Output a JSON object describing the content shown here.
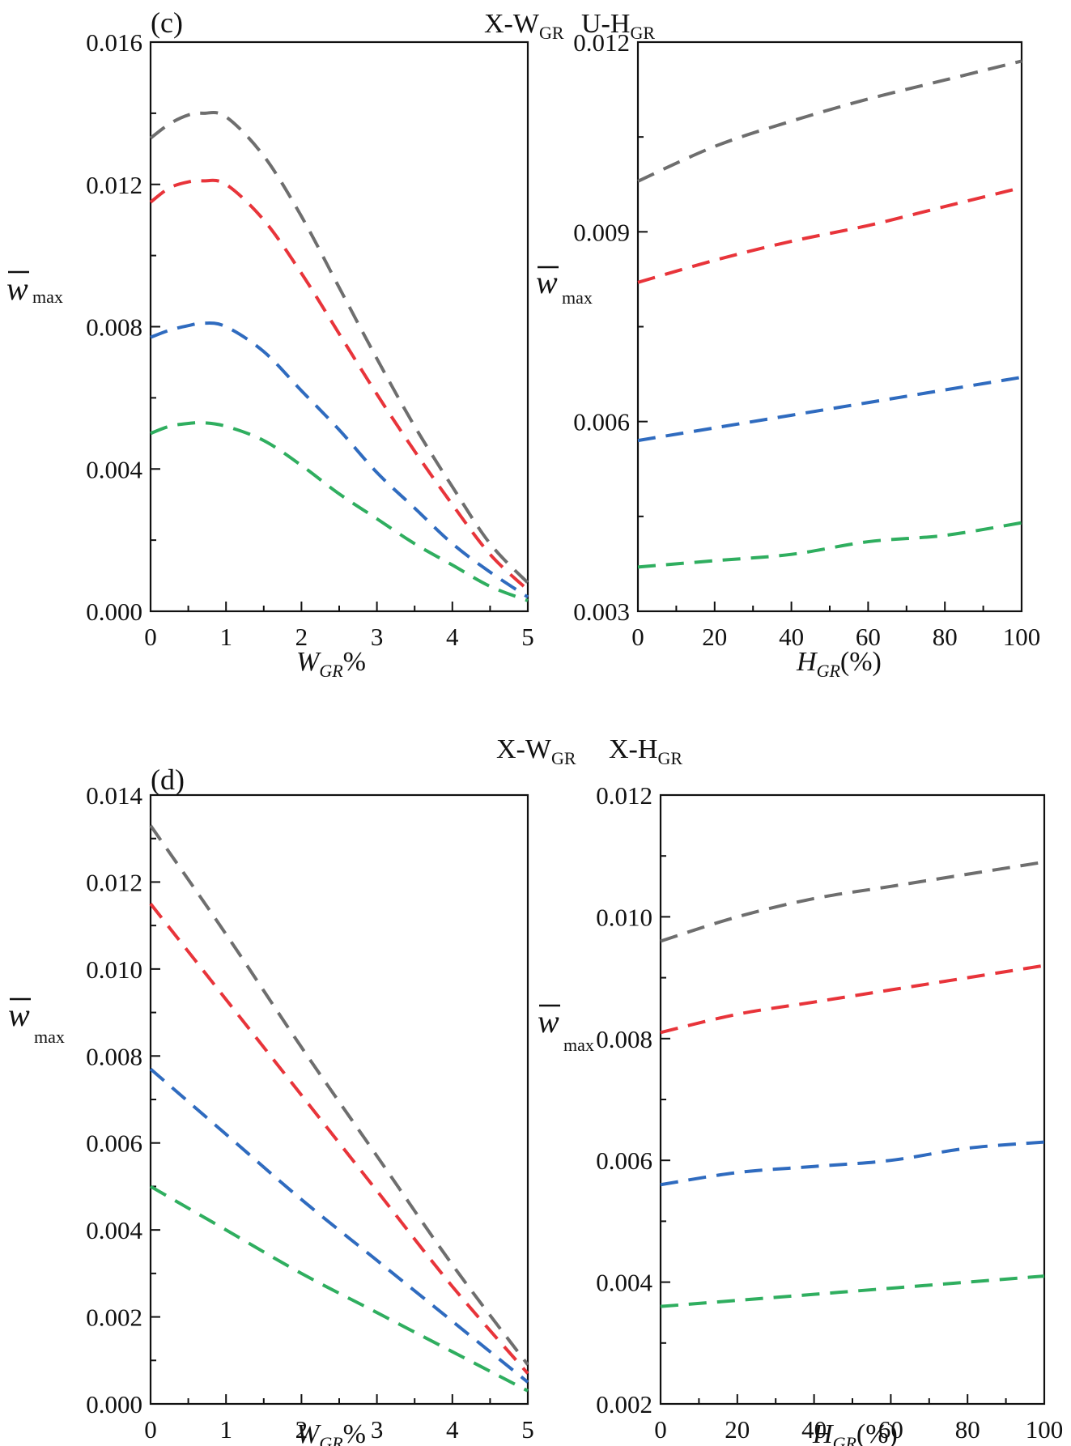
{
  "figure": {
    "panel_c": {
      "label": "(c)",
      "header": {
        "a_main": "X-W",
        "a_sub": "GR",
        "b_main": "U-H",
        "b_sub": "GR"
      }
    },
    "panel_d": {
      "label": "(d)",
      "header": {
        "a_main": "X-W",
        "a_sub": "GR",
        "b_main": "X-H",
        "b_sub": "GR"
      }
    }
  },
  "labels": {
    "ylabel_main": "w",
    "ylabel_sub": "max",
    "xlabel_w_main": "W",
    "xlabel_w_sub": "GR",
    "xlabel_w_tail": "%",
    "xlabel_h_main": "H",
    "xlabel_h_sub": "GR",
    "xlabel_h_tail": "(%)"
  },
  "colors": {
    "gray": "#6e6e6e",
    "red": "#e8343a",
    "blue": "#2f6bbf",
    "green": "#2fae5f"
  },
  "chart_data": [
    {
      "id": "c-left",
      "type": "line",
      "title": "",
      "xlabel": "W_GR%",
      "ylabel": "w̄_max",
      "xlim": [
        0,
        5
      ],
      "ylim": [
        0,
        0.016
      ],
      "xticks": [
        0,
        1,
        2,
        3,
        4,
        5
      ],
      "yticks": [
        0.0,
        0.004,
        0.008,
        0.012,
        0.016
      ],
      "ytick_labels": [
        "0.000",
        "0.004",
        "0.008",
        "0.012",
        "0.016"
      ],
      "xtick_labels": [
        "0",
        "1",
        "2",
        "3",
        "4",
        "5"
      ],
      "x": [
        0,
        0.25,
        0.5,
        0.7,
        1,
        1.5,
        2,
        2.5,
        3,
        3.5,
        4,
        4.5,
        5
      ],
      "series": [
        {
          "name": "gray",
          "color_key": "gray",
          "values": [
            0.0133,
            0.0137,
            0.01395,
            0.014,
            0.0139,
            0.0128,
            0.0111,
            0.0091,
            0.0071,
            0.0052,
            0.0035,
            0.0019,
            0.0008
          ]
        },
        {
          "name": "red",
          "color_key": "red",
          "values": [
            0.0115,
            0.0119,
            0.01207,
            0.0121,
            0.012,
            0.011,
            0.0095,
            0.0078,
            0.0061,
            0.0045,
            0.003,
            0.0016,
            0.0006
          ]
        },
        {
          "name": "blue",
          "color_key": "blue",
          "values": [
            0.0077,
            0.0079,
            0.00803,
            0.0081,
            0.008,
            0.0073,
            0.0062,
            0.0051,
            0.0039,
            0.0029,
            0.0019,
            0.0011,
            0.0004
          ]
        },
        {
          "name": "green",
          "color_key": "green",
          "values": [
            0.005,
            0.0052,
            0.00528,
            0.0053,
            0.0052,
            0.0048,
            0.0041,
            0.0033,
            0.0026,
            0.0019,
            0.0013,
            0.0007,
            0.0003
          ]
        }
      ]
    },
    {
      "id": "c-right",
      "type": "line",
      "title": "",
      "xlabel": "H_GR(%)",
      "ylabel": "w̄_max",
      "xlim": [
        0,
        100
      ],
      "ylim": [
        0.003,
        0.012
      ],
      "xticks": [
        0,
        20,
        40,
        60,
        80,
        100
      ],
      "yticks": [
        0.003,
        0.006,
        0.009,
        0.012
      ],
      "ytick_labels": [
        "0.003",
        "0.006",
        "0.009",
        "0.012"
      ],
      "xtick_labels": [
        "0",
        "20",
        "40",
        "60",
        "80",
        "100"
      ],
      "x": [
        0,
        20,
        40,
        60,
        80,
        100
      ],
      "series": [
        {
          "name": "gray",
          "color_key": "gray",
          "values": [
            0.0098,
            0.01035,
            0.01075,
            0.0111,
            0.0114,
            0.0117
          ]
        },
        {
          "name": "red",
          "color_key": "red",
          "values": [
            0.0082,
            0.00855,
            0.00885,
            0.0091,
            0.0094,
            0.0097
          ]
        },
        {
          "name": "blue",
          "color_key": "blue",
          "values": [
            0.0057,
            0.0059,
            0.0061,
            0.0063,
            0.0065,
            0.0067
          ]
        },
        {
          "name": "green",
          "color_key": "green",
          "values": [
            0.0037,
            0.0038,
            0.0039,
            0.0041,
            0.0042,
            0.0044
          ]
        }
      ]
    },
    {
      "id": "d-left",
      "type": "line",
      "title": "",
      "xlabel": "W_GR%",
      "ylabel": "w̄_max",
      "xlim": [
        0,
        5
      ],
      "ylim": [
        0,
        0.014
      ],
      "xticks": [
        0,
        1,
        2,
        3,
        4,
        5
      ],
      "yticks": [
        0.0,
        0.002,
        0.004,
        0.006,
        0.008,
        0.01,
        0.012,
        0.014
      ],
      "ytick_labels": [
        "0.000",
        "0.002",
        "0.004",
        "0.006",
        "0.008",
        "0.010",
        "0.012",
        "0.014"
      ],
      "xtick_labels": [
        "0",
        "1",
        "2",
        "3",
        "4",
        "5"
      ],
      "x": [
        0,
        1,
        2,
        3,
        4,
        5
      ],
      "series": [
        {
          "name": "gray",
          "color_key": "gray",
          "values": [
            0.0133,
            0.0108,
            0.0082,
            0.0057,
            0.0032,
            0.0009
          ]
        },
        {
          "name": "red",
          "color_key": "red",
          "values": [
            0.0115,
            0.0093,
            0.0071,
            0.0049,
            0.0027,
            0.0007
          ]
        },
        {
          "name": "blue",
          "color_key": "blue",
          "values": [
            0.0077,
            0.0062,
            0.0047,
            0.0033,
            0.0019,
            0.0005
          ]
        },
        {
          "name": "green",
          "color_key": "green",
          "values": [
            0.005,
            0.004,
            0.003,
            0.0021,
            0.0012,
            0.0003
          ]
        }
      ]
    },
    {
      "id": "d-right",
      "type": "line",
      "title": "",
      "xlabel": "H_GR(%)",
      "ylabel": "w̄_max",
      "xlim": [
        0,
        100
      ],
      "ylim": [
        0.002,
        0.012
      ],
      "xticks": [
        0,
        20,
        40,
        60,
        80,
        100
      ],
      "yticks": [
        0.002,
        0.004,
        0.006,
        0.008,
        0.01,
        0.012
      ],
      "ytick_labels": [
        "0.002",
        "0.004",
        "0.006",
        "0.008",
        "0.010",
        "0.012"
      ],
      "xtick_labels": [
        "0",
        "20",
        "40",
        "60",
        "80",
        "100"
      ],
      "x": [
        0,
        20,
        40,
        60,
        80,
        100
      ],
      "series": [
        {
          "name": "gray",
          "color_key": "gray",
          "values": [
            0.0096,
            0.01,
            0.0103,
            0.0105,
            0.0107,
            0.0109
          ]
        },
        {
          "name": "red",
          "color_key": "red",
          "values": [
            0.0081,
            0.0084,
            0.0086,
            0.0088,
            0.009,
            0.0092
          ]
        },
        {
          "name": "blue",
          "color_key": "blue",
          "values": [
            0.0056,
            0.0058,
            0.0059,
            0.006,
            0.0062,
            0.0063
          ]
        },
        {
          "name": "green",
          "color_key": "green",
          "values": [
            0.0036,
            0.0037,
            0.0038,
            0.0039,
            0.004,
            0.0041
          ]
        }
      ]
    }
  ]
}
